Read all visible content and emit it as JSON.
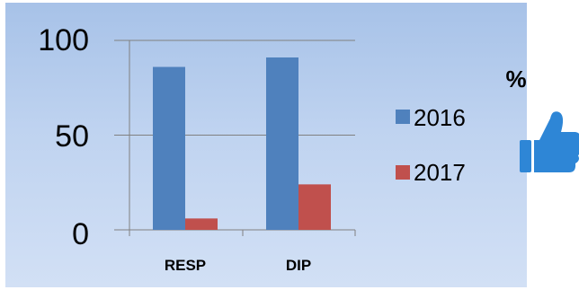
{
  "chart_data": {
    "type": "bar",
    "categories": [
      "RESP",
      "DIP"
    ],
    "series": [
      {
        "name": "2016",
        "values": [
          86,
          91
        ],
        "color": "#4f81bd"
      },
      {
        "name": "2017",
        "values": [
          6,
          24
        ],
        "color": "#c0504d"
      }
    ],
    "ylim": [
      0,
      100
    ],
    "yticks": [
      "0",
      "50",
      "100"
    ],
    "unit": "%",
    "grid": true,
    "legend": "right"
  },
  "icons": {
    "thumbs_up": "thumbs-up-icon",
    "thumbs_up_color": "#2e86d6"
  }
}
